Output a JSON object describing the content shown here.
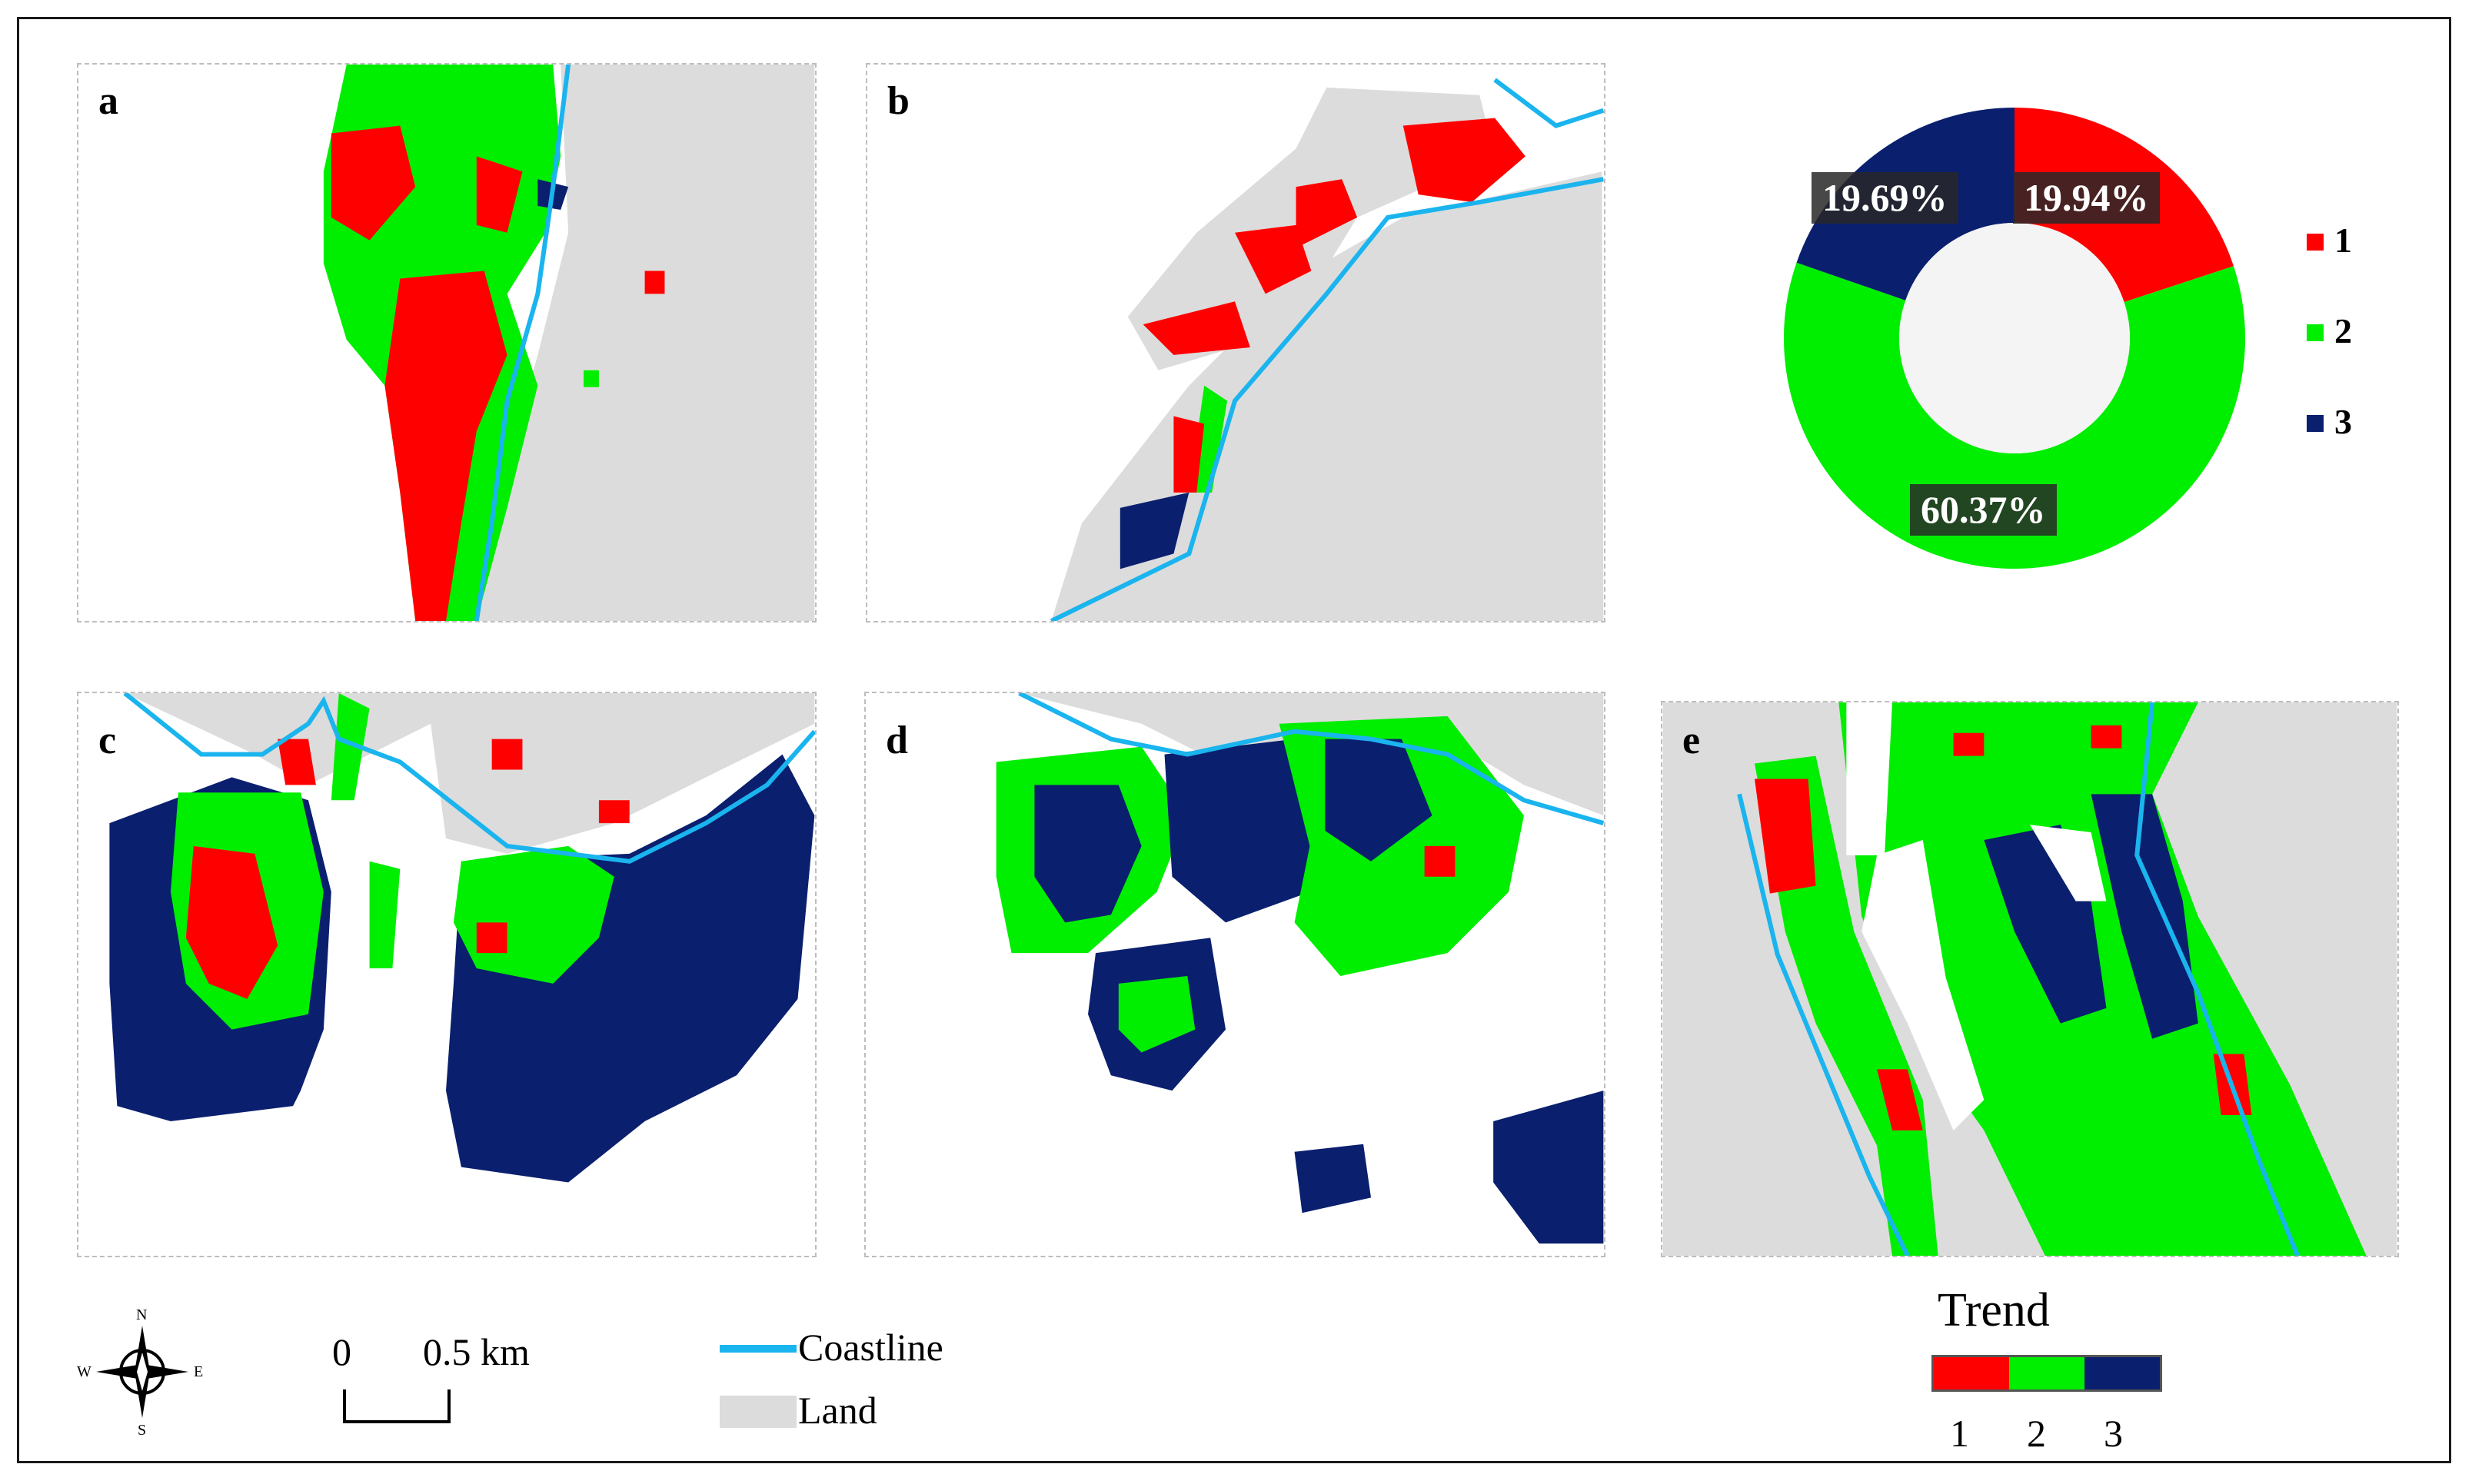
{
  "panels": [
    {
      "label": "a"
    },
    {
      "label": "b"
    },
    {
      "label": "c"
    },
    {
      "label": "d"
    },
    {
      "label": "e"
    }
  ],
  "donut": {
    "slices": [
      {
        "name": "1",
        "value": 19.94,
        "label": "19.94%",
        "color": "#ff0000"
      },
      {
        "name": "2",
        "value": 60.37,
        "label": "60.37%",
        "color": "#00ee00"
      },
      {
        "name": "3",
        "value": 19.69,
        "label": "19.69%",
        "color": "#0a1f6e"
      }
    ],
    "legend": [
      "1",
      "2",
      "3"
    ]
  },
  "compass": {
    "n": "N",
    "s": "S",
    "e": "E",
    "w": "W"
  },
  "scale": {
    "start": "0",
    "end": "0.5 km"
  },
  "key": {
    "coastline": "Coastline",
    "land": "Land"
  },
  "trend": {
    "title": "Trend",
    "labels": [
      "1",
      "2",
      "3"
    ]
  },
  "colors": {
    "red": "#ff0000",
    "green": "#00ee00",
    "blue": "#0a1f6e",
    "land": "#dcdcdc",
    "coast": "#1ab4ee"
  }
}
